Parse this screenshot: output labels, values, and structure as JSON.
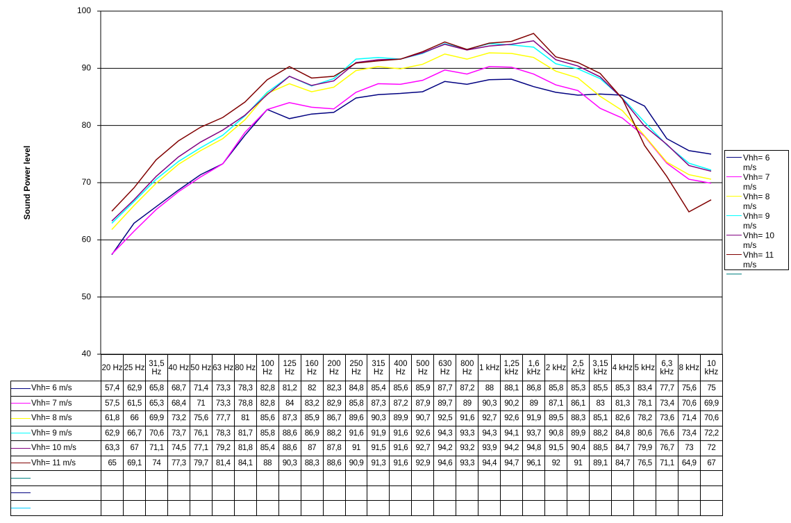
{
  "chart_data": {
    "type": "line",
    "y_label": "Sound Power level",
    "categories": [
      "20 Hz",
      "25 Hz",
      "31,5 Hz",
      "40 Hz",
      "50 Hz",
      "63 Hz",
      "80 Hz",
      "100 Hz",
      "125 Hz",
      "160 Hz",
      "200 Hz",
      "250 Hz",
      "315 Hz",
      "400 Hz",
      "500 Hz",
      "630 Hz",
      "800 Hz",
      "1 kHz",
      "1,25 kHz",
      "1,6 kHz",
      "2 kHz",
      "2,5 kHz",
      "3,15 kHz",
      "4 kHz",
      "5 kHz",
      "6,3 kHz",
      "8 kHz",
      "10 kHz"
    ],
    "series": [
      {
        "name": "Vhh= 6 m/s",
        "color": "#000080",
        "values": [
          57.4,
          62.9,
          65.8,
          68.7,
          71.4,
          73.3,
          78.3,
          82.8,
          81.2,
          82,
          82.3,
          84.8,
          85.4,
          85.6,
          85.9,
          87.7,
          87.2,
          88,
          88.1,
          86.8,
          85.8,
          85.3,
          85.5,
          85.3,
          83.4,
          77.7,
          75.6,
          75
        ],
        "value_labels": [
          "57,4",
          "62,9",
          "65,8",
          "68,7",
          "71,4",
          "73,3",
          "78,3",
          "82,8",
          "81,2",
          "82",
          "82,3",
          "84,8",
          "85,4",
          "85,6",
          "85,9",
          "87,7",
          "87,2",
          "88",
          "88,1",
          "86,8",
          "85,8",
          "85,3",
          "85,5",
          "85,3",
          "83,4",
          "77,7",
          "75,6",
          "75"
        ]
      },
      {
        "name": "Vhh= 7 m/s",
        "color": "#ff00ff",
        "values": [
          57.5,
          61.5,
          65.3,
          68.4,
          71,
          73.3,
          78.8,
          82.8,
          84,
          83.2,
          82.9,
          85.8,
          87.3,
          87.2,
          87.9,
          89.7,
          89,
          90.3,
          90.2,
          89,
          87.1,
          86.1,
          83,
          81.3,
          78.1,
          73.4,
          70.6,
          69.9
        ],
        "value_labels": [
          "57,5",
          "61,5",
          "65,3",
          "68,4",
          "71",
          "73,3",
          "78,8",
          "82,8",
          "84",
          "83,2",
          "82,9",
          "85,8",
          "87,3",
          "87,2",
          "87,9",
          "89,7",
          "89",
          "90,3",
          "90,2",
          "89",
          "87,1",
          "86,1",
          "83",
          "81,3",
          "78,1",
          "73,4",
          "70,6",
          "69,9"
        ]
      },
      {
        "name": "Vhh= 8 m/s",
        "color": "#ffff00",
        "values": [
          61.8,
          66,
          69.9,
          73.2,
          75.6,
          77.7,
          81,
          85.6,
          87.3,
          85.9,
          86.7,
          89.6,
          90.3,
          89.9,
          90.7,
          92.5,
          91.6,
          92.7,
          92.6,
          91.9,
          89.5,
          88.3,
          85.1,
          82.6,
          78.2,
          73.6,
          71.4,
          70.6
        ],
        "value_labels": [
          "61,8",
          "66",
          "69,9",
          "73,2",
          "75,6",
          "77,7",
          "81",
          "85,6",
          "87,3",
          "85,9",
          "86,7",
          "89,6",
          "90,3",
          "89,9",
          "90,7",
          "92,5",
          "91,6",
          "92,7",
          "92,6",
          "91,9",
          "89,5",
          "88,3",
          "85,1",
          "82,6",
          "78,2",
          "73,6",
          "71,4",
          "70,6"
        ]
      },
      {
        "name": "Vhh= 9 m/s",
        "color": "#00ffff",
        "values": [
          62.9,
          66.7,
          70.6,
          73.7,
          76.1,
          78.3,
          81.7,
          85.8,
          88.6,
          86.9,
          88.2,
          91.6,
          91.9,
          91.6,
          92.6,
          94.3,
          93.3,
          94.3,
          94.1,
          93.7,
          90.8,
          89.9,
          88.2,
          84.8,
          80.6,
          76.6,
          73.4,
          72.2
        ],
        "value_labels": [
          "62,9",
          "66,7",
          "70,6",
          "73,7",
          "76,1",
          "78,3",
          "81,7",
          "85,8",
          "88,6",
          "86,9",
          "88,2",
          "91,6",
          "91,9",
          "91,6",
          "92,6",
          "94,3",
          "93,3",
          "94,3",
          "94,1",
          "93,7",
          "90,8",
          "89,9",
          "88,2",
          "84,8",
          "80,6",
          "76,6",
          "73,4",
          "72,2"
        ]
      },
      {
        "name": "Vhh= 10 m/s",
        "color": "#800080",
        "values": [
          63.3,
          67,
          71.1,
          74.5,
          77.1,
          79.2,
          81.8,
          85.4,
          88.6,
          87,
          87.8,
          91,
          91.5,
          91.6,
          92.7,
          94.2,
          93.2,
          93.9,
          94.2,
          94.8,
          91.5,
          90.4,
          88.5,
          84.7,
          79.9,
          76.7,
          73,
          72
        ],
        "value_labels": [
          "63,3",
          "67",
          "71,1",
          "74,5",
          "77,1",
          "79,2",
          "81,8",
          "85,4",
          "88,6",
          "87",
          "87,8",
          "91",
          "91,5",
          "91,6",
          "92,7",
          "94,2",
          "93,2",
          "93,9",
          "94,2",
          "94,8",
          "91,5",
          "90,4",
          "88,5",
          "84,7",
          "79,9",
          "76,7",
          "73",
          "72"
        ]
      },
      {
        "name": "Vhh= 11 m/s",
        "color": "#800000",
        "values": [
          65,
          69.1,
          74,
          77.3,
          79.7,
          81.4,
          84.1,
          88,
          90.3,
          88.3,
          88.6,
          90.9,
          91.3,
          91.6,
          92.9,
          94.6,
          93.3,
          94.4,
          94.7,
          96.1,
          92,
          91,
          89.1,
          84.7,
          76.5,
          71.1,
          64.9,
          67
        ],
        "value_labels": [
          "65",
          "69,1",
          "74",
          "77,3",
          "79,7",
          "81,4",
          "84,1",
          "88",
          "90,3",
          "88,3",
          "88,6",
          "90,9",
          "91,3",
          "91,6",
          "92,9",
          "94,6",
          "93,3",
          "94,4",
          "94,7",
          "96,1",
          "92",
          "91",
          "89,1",
          "84,7",
          "76,5",
          "71,1",
          "64,9",
          "67"
        ]
      }
    ],
    "ylim": [
      40,
      100
    ],
    "yticks": [
      40,
      50,
      60,
      70,
      80,
      90,
      100
    ],
    "grid": true
  }
}
